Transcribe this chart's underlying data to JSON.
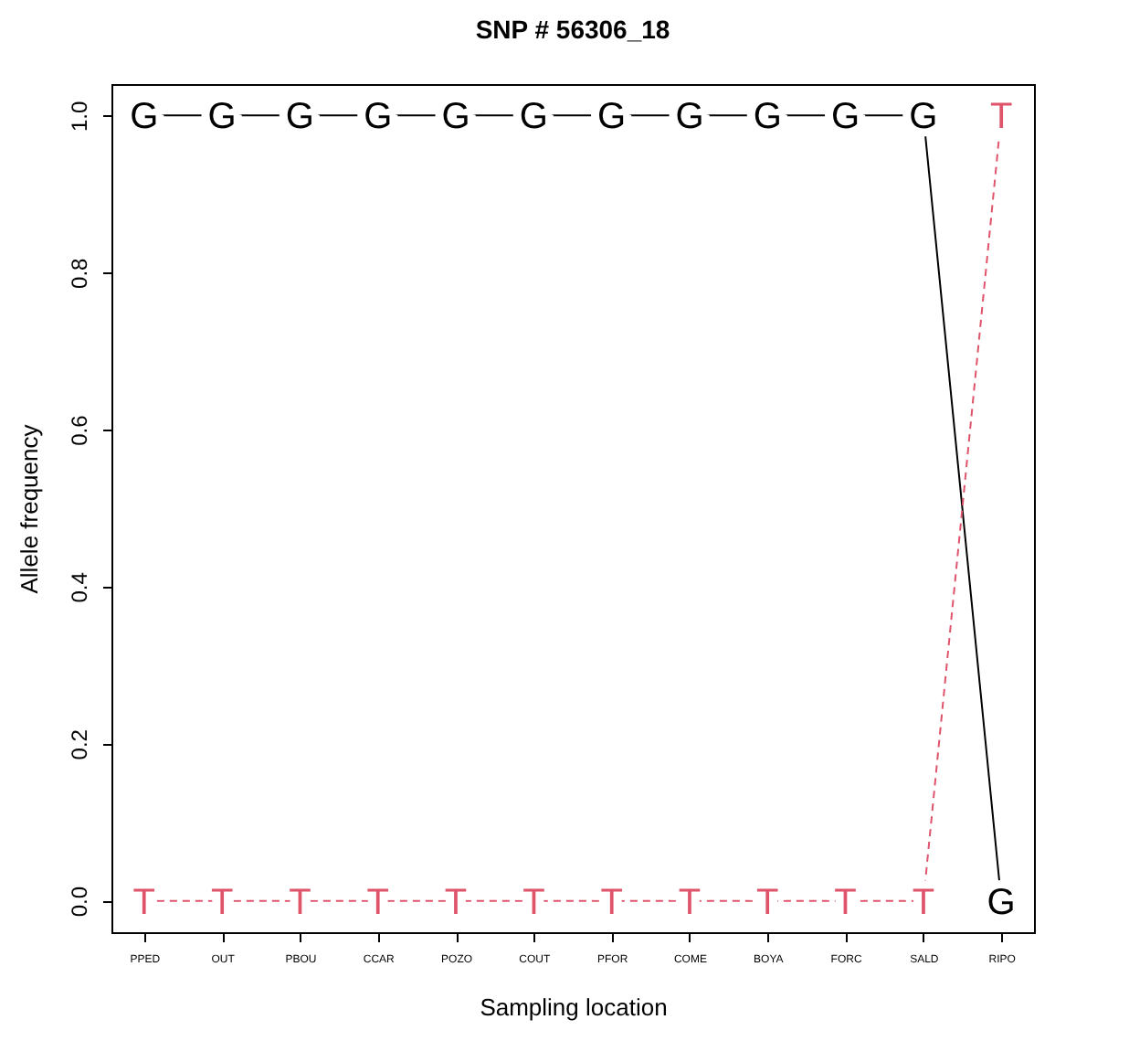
{
  "chart_data": {
    "type": "line",
    "title": "SNP # 56306_18",
    "xlabel": "Sampling location",
    "ylabel": "Allele frequency",
    "categories": [
      "PPED",
      "OUT",
      "PBOU",
      "CCAR",
      "POZO",
      "COUT",
      "PFOR",
      "COME",
      "BOYA",
      "FORC",
      "SALD",
      "RIPO"
    ],
    "series": [
      {
        "name": "G",
        "color": "#000000",
        "line_style": "solid",
        "values": [
          1,
          1,
          1,
          1,
          1,
          1,
          1,
          1,
          1,
          1,
          1,
          0
        ]
      },
      {
        "name": "T",
        "color": "#df536b",
        "line_style": "dashed",
        "values": [
          0,
          0,
          0,
          0,
          0,
          0,
          0,
          0,
          0,
          0,
          0,
          1
        ]
      }
    ],
    "ylim": [
      -0.04,
      1.04
    ],
    "yticks": [
      {
        "value": 0,
        "label": "0.0"
      },
      {
        "value": 0.2,
        "label": "0.2"
      },
      {
        "value": 0.4,
        "label": "0.4"
      },
      {
        "value": 0.6,
        "label": "0.6"
      },
      {
        "value": 0.8,
        "label": "0.8"
      },
      {
        "value": 1,
        "label": "1.0"
      }
    ],
    "grid": false
  }
}
